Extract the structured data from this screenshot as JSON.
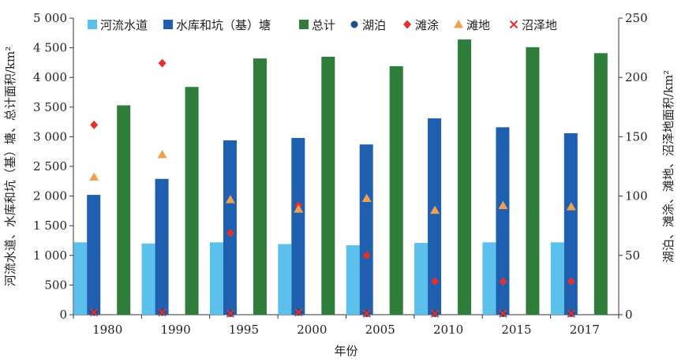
{
  "chart_data": {
    "type": "bar",
    "categories": [
      "1980",
      "1990",
      "1995",
      "2000",
      "2005",
      "2010",
      "2015",
      "2017"
    ],
    "xlabel": "年份",
    "ylabel_left": "河流水道、水库和坑（基）塘、总计面积/km²",
    "ylabel_right": "湖泊、滩涂、滩地、沼泽地面积/km²",
    "y_left": {
      "min": 0,
      "max": 5000,
      "step": 500,
      "tick_labels": [
        "0",
        "500",
        "1 000",
        "1 500",
        "2 000",
        "2 500",
        "3 000",
        "3 500",
        "4 000",
        "4 500",
        "5 000"
      ]
    },
    "y_right": {
      "min": 0,
      "max": 250,
      "step": 50,
      "tick_labels": [
        "0",
        "50",
        "100",
        "150",
        "200",
        "250"
      ]
    },
    "grid": false,
    "legend_position": "top",
    "series": [
      {
        "name": "河流水道",
        "kind": "bar",
        "axis": "left",
        "color": "#5bc0eb",
        "marker": "square",
        "values": [
          1220,
          1200,
          1220,
          1190,
          1170,
          1210,
          1220,
          1220
        ]
      },
      {
        "name": "水库和坑（基）塘",
        "kind": "bar",
        "axis": "left",
        "color": "#1f5fb0",
        "marker": "square",
        "values": [
          2020,
          2290,
          2940,
          2980,
          2870,
          3310,
          3160,
          3060
        ]
      },
      {
        "name": "总计",
        "kind": "bar",
        "axis": "left",
        "color": "#2e7d3a",
        "marker": "square",
        "values": [
          3530,
          3840,
          4320,
          4350,
          4190,
          4640,
          4510,
          4410
        ]
      },
      {
        "name": "湖泊",
        "kind": "scatter",
        "axis": "right",
        "color": "#1f4e8c",
        "marker": "circle",
        "values": [
          2,
          2,
          1,
          2,
          1,
          1,
          1,
          1
        ]
      },
      {
        "name": "滩涂",
        "kind": "scatter",
        "axis": "right",
        "color": "#e03030",
        "marker": "diamond",
        "values": [
          160,
          212,
          69,
          92,
          50,
          28,
          28,
          28
        ]
      },
      {
        "name": "滩地",
        "kind": "scatter",
        "axis": "right",
        "color": "#f0a050",
        "marker": "triangle",
        "values": [
          116,
          135,
          97,
          89,
          98,
          88,
          92,
          91
        ]
      },
      {
        "name": "沼泽地",
        "kind": "scatter",
        "axis": "right",
        "color": "#e03030",
        "marker": "cross",
        "values": [
          2,
          2,
          1,
          2,
          1,
          1,
          1,
          1
        ]
      }
    ]
  }
}
